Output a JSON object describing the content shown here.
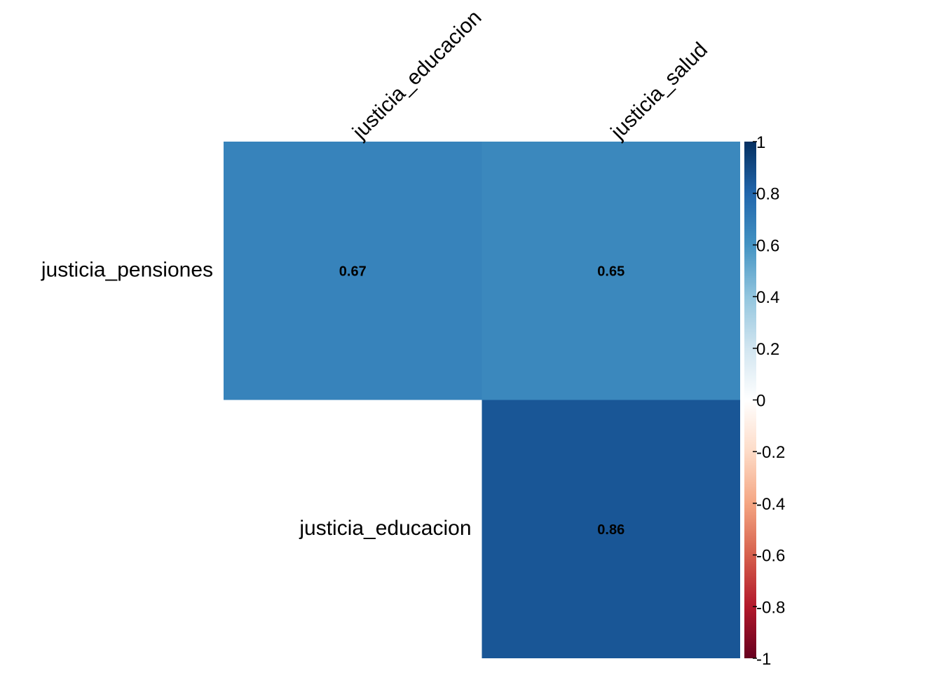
{
  "chart_data": {
    "type": "heatmap",
    "title": "",
    "xlabel": "",
    "ylabel": "",
    "columns": [
      "justicia_educacion",
      "justicia_salud"
    ],
    "rows": [
      "justicia_pensiones",
      "justicia_educacion"
    ],
    "cells": [
      {
        "row": 0,
        "col": 0,
        "value": 0.67,
        "label": "0.67"
      },
      {
        "row": 0,
        "col": 1,
        "value": 0.65,
        "label": "0.65"
      },
      {
        "row": 1,
        "col": 1,
        "value": 0.86,
        "label": "0.86"
      }
    ],
    "legend": {
      "placement": "right",
      "range": [
        -1,
        1
      ],
      "ticks": [
        {
          "value": 1,
          "label": "1"
        },
        {
          "value": 0.8,
          "label": "0.8"
        },
        {
          "value": 0.6,
          "label": "0.6"
        },
        {
          "value": 0.4,
          "label": "0.4"
        },
        {
          "value": 0.2,
          "label": "0.2"
        },
        {
          "value": 0,
          "label": "0"
        },
        {
          "value": -0.2,
          "label": "-0.2"
        },
        {
          "value": -0.4,
          "label": "-0.4"
        },
        {
          "value": -0.6,
          "label": "-0.6"
        },
        {
          "value": -0.8,
          "label": "-0.8"
        },
        {
          "value": -1,
          "label": "-1"
        }
      ]
    },
    "color_scale": [
      "#67001F",
      "#B2182B",
      "#D6604D",
      "#F4A582",
      "#FDDBC7",
      "#FFFFFF",
      "#D1E5F0",
      "#92C5DE",
      "#4393C3",
      "#2166AC",
      "#053061"
    ]
  }
}
